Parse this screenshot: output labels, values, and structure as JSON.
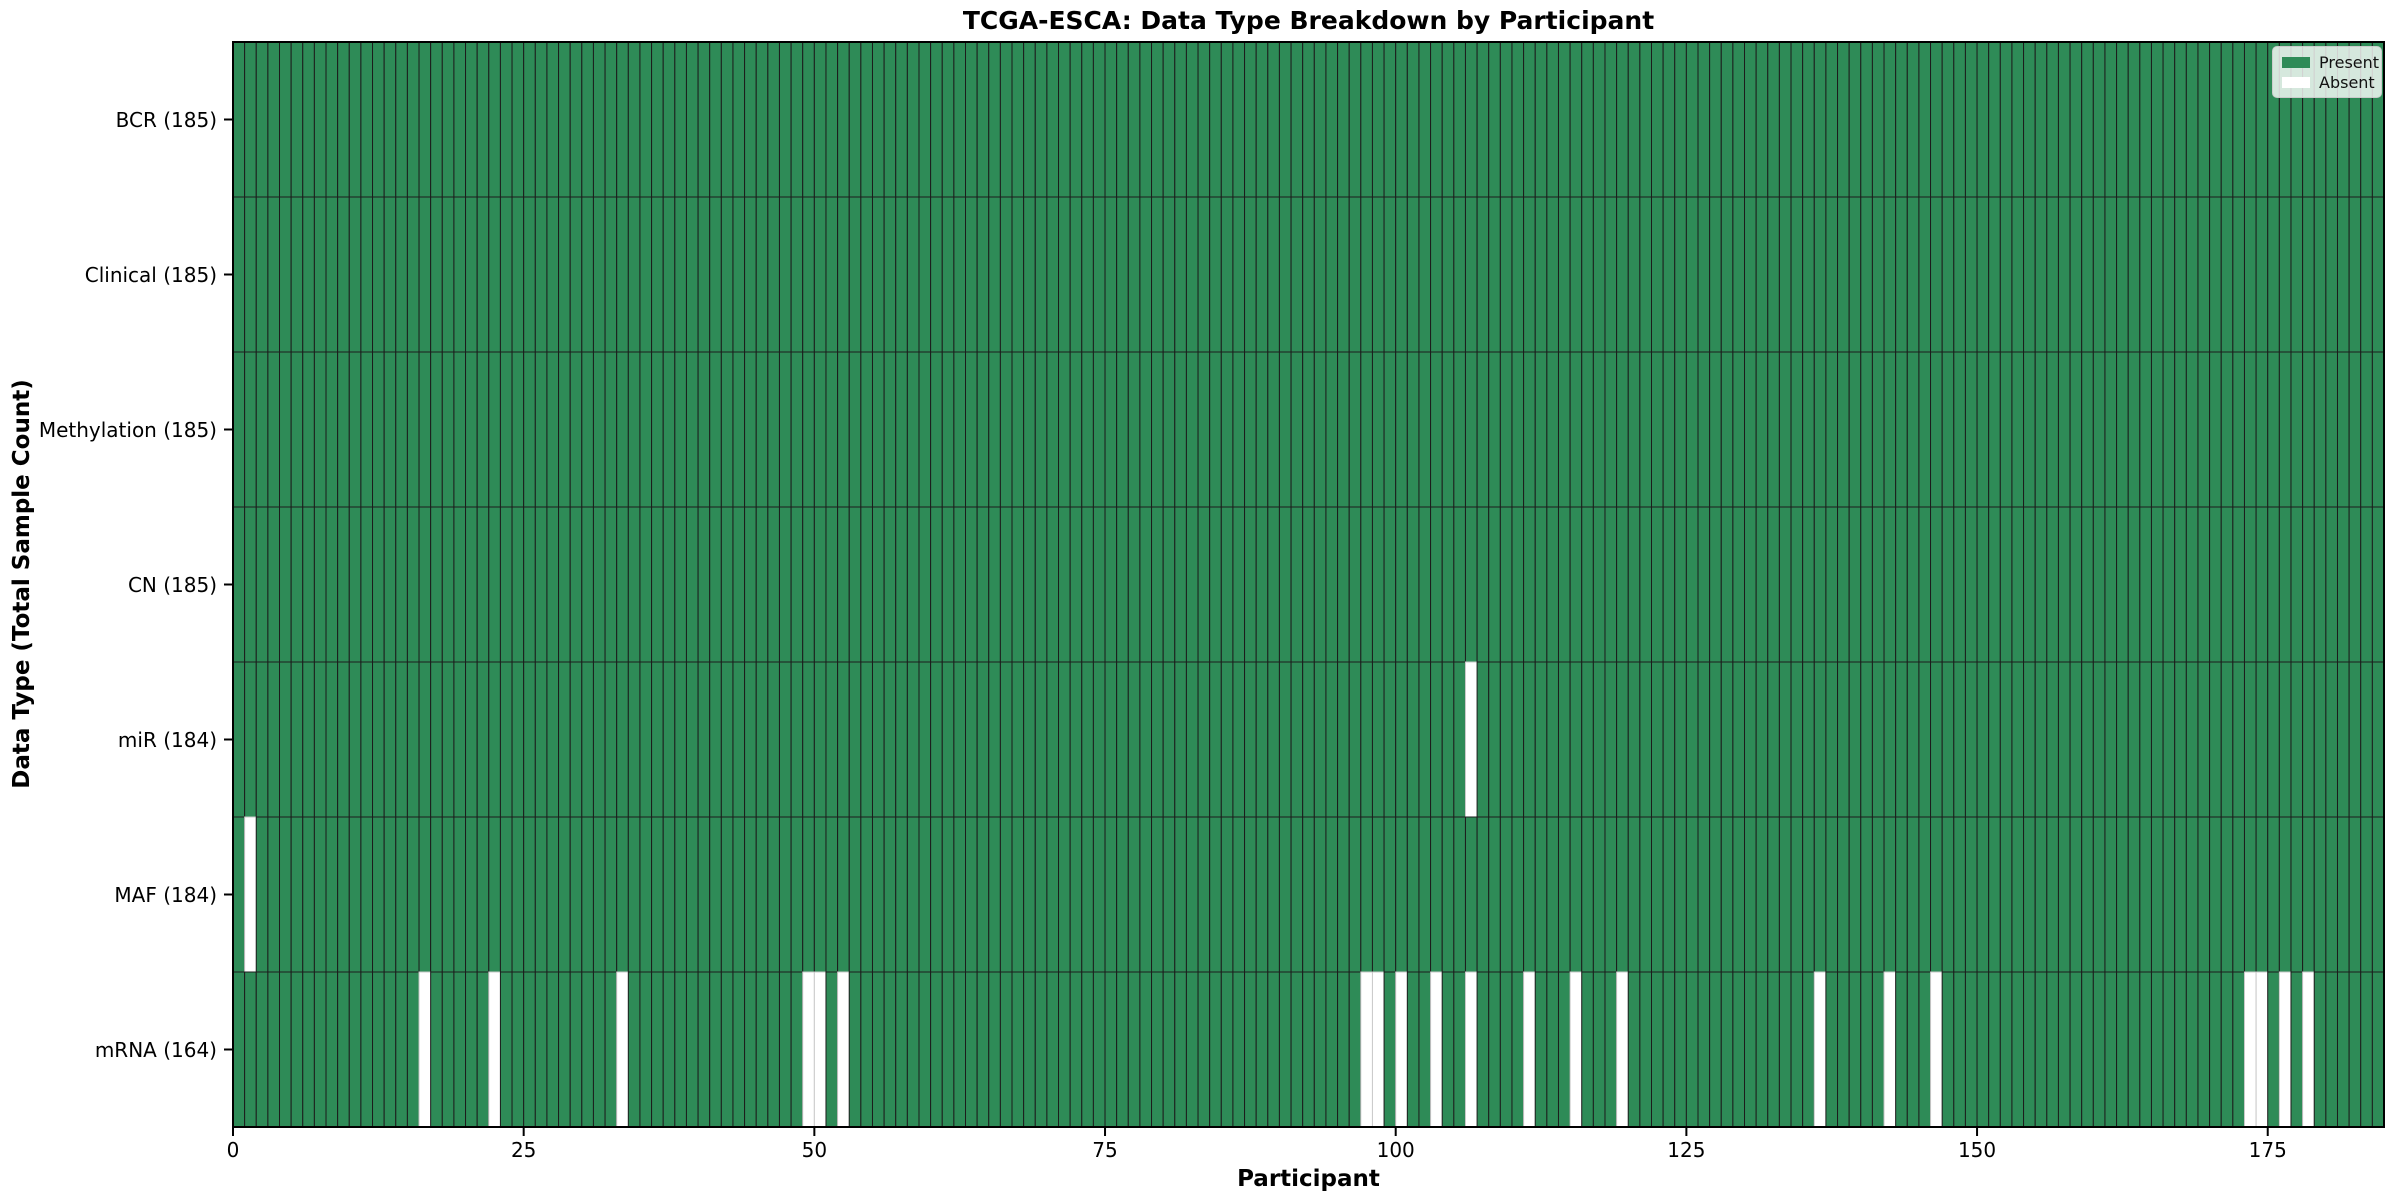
{
  "chart_data": {
    "type": "heatmap",
    "title": "TCGA-ESCA: Data Type Breakdown by Participant",
    "xlabel": "Participant",
    "ylabel": "Data Type (Total Sample Count)",
    "n_participants": 185,
    "x_ticks": [
      0,
      25,
      50,
      75,
      100,
      125,
      150,
      175
    ],
    "legend_position": "upper right",
    "grid": false,
    "colors": {
      "present": "#2E8B57",
      "absent": "#ffffff",
      "cell_edge": "#1c1c1c",
      "absent_edge": "#c9c9c9",
      "spine": "#000000"
    },
    "legend": [
      {
        "label": "Present",
        "color": "#2E8B57"
      },
      {
        "label": "Absent",
        "color": "#ffffff"
      }
    ],
    "rows": [
      {
        "label": "BCR (185)",
        "total": 185,
        "absent": []
      },
      {
        "label": "Clinical (185)",
        "total": 185,
        "absent": []
      },
      {
        "label": "Methylation (185)",
        "total": 185,
        "absent": []
      },
      {
        "label": "CN (185)",
        "total": 185,
        "absent": []
      },
      {
        "label": "miR (184)",
        "total": 184,
        "absent": [
          106
        ]
      },
      {
        "label": "MAF (184)",
        "total": 184,
        "absent": [
          1
        ]
      },
      {
        "label": "mRNA (164)",
        "total": 164,
        "absent": [
          16,
          22,
          33,
          49,
          50,
          52,
          97,
          98,
          100,
          103,
          106,
          111,
          115,
          119,
          136,
          142,
          146,
          173,
          174,
          176,
          178
        ]
      }
    ]
  }
}
